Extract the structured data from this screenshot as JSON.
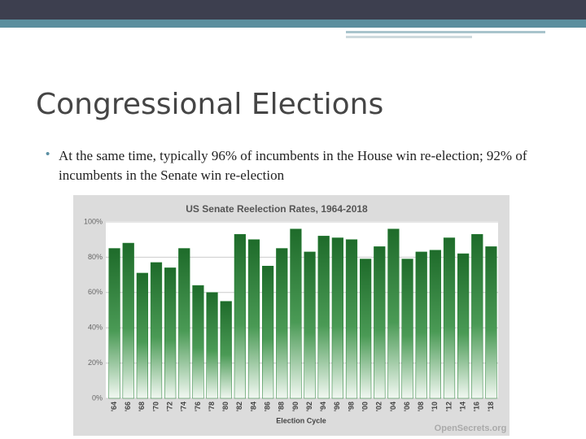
{
  "title": "Congressional Elections",
  "bullet": "At the same time, typically 96% of incumbents in the House win re-election; 92% of incumbents in the Senate win re-election",
  "chart_data": {
    "type": "bar",
    "title": "US Senate Reelection Rates, 1964-2018",
    "x_label": "Election Cycle",
    "watermark": "OpenSecrets.org",
    "categories": [
      "'64",
      "'66",
      "'68",
      "'70",
      "'72",
      "'74",
      "'76",
      "'78",
      "'80",
      "'82",
      "'84",
      "'86",
      "'88",
      "'90",
      "'92",
      "'94",
      "'96",
      "'98",
      "'00",
      "'02",
      "'04",
      "'06",
      "'08",
      "'10",
      "'12",
      "'14",
      "'16",
      "'18"
    ],
    "values": [
      85,
      88,
      71,
      77,
      74,
      85,
      64,
      60,
      55,
      93,
      90,
      75,
      85,
      96,
      83,
      92,
      91,
      90,
      79,
      86,
      96,
      79,
      83,
      84,
      91,
      82,
      93,
      86
    ],
    "color": "#1e7a2e",
    "ylim": [
      0,
      100
    ],
    "yticks": [
      {
        "value": 0,
        "label": "0%"
      },
      {
        "value": 20,
        "label": "20%"
      },
      {
        "value": 40,
        "label": "40%"
      },
      {
        "value": 60,
        "label": "60%"
      },
      {
        "value": 80,
        "label": "80%"
      },
      {
        "value": 100,
        "label": "100%"
      }
    ],
    "grid": true
  }
}
